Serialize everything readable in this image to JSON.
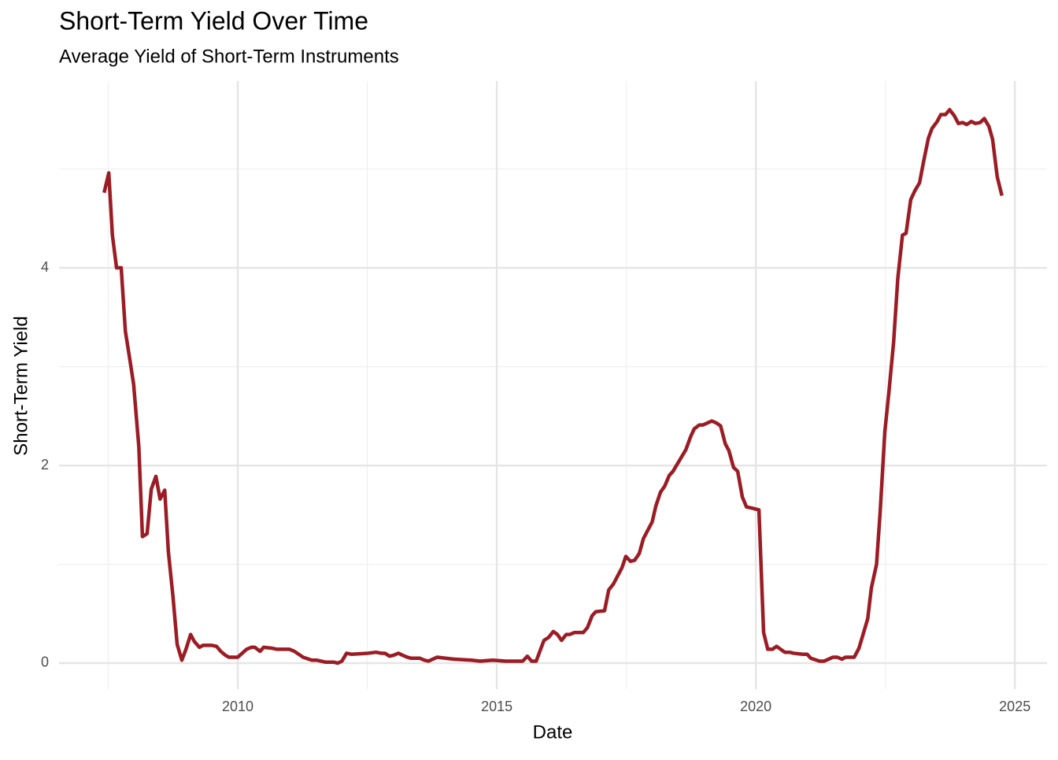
{
  "chart_data": {
    "type": "line",
    "title": "Short-Term Yield Over Time",
    "subtitle": "Average Yield of Short-Term Instruments",
    "x_label": "Date",
    "y_label": "Short-Term Yield",
    "x": [
      2007.42,
      2007.51,
      2007.58,
      2007.66,
      2007.75,
      2007.83,
      2007.92,
      2007.99,
      2008.09,
      2008.16,
      2008.25,
      2008.33,
      2008.42,
      2008.5,
      2008.59,
      2008.66,
      2008.75,
      2008.83,
      2008.92,
      2009.0,
      2009.09,
      2009.16,
      2009.26,
      2009.33,
      2009.42,
      2009.5,
      2009.59,
      2009.67,
      2009.76,
      2009.83,
      2010.0,
      2010.17,
      2010.26,
      2010.33,
      2010.43,
      2010.5,
      2010.67,
      2010.76,
      2011.0,
      2011.09,
      2011.26,
      2011.43,
      2011.52,
      2011.69,
      2011.85,
      2011.93,
      2012.01,
      2012.1,
      2012.19,
      2012.51,
      2012.67,
      2012.77,
      2012.84,
      2012.93,
      2013.01,
      2013.1,
      2013.18,
      2013.27,
      2013.34,
      2013.51,
      2013.6,
      2013.68,
      2013.85,
      2014.01,
      2014.18,
      2014.51,
      2014.68,
      2014.92,
      2015.17,
      2015.5,
      2015.59,
      2015.67,
      2015.76,
      2015.91,
      2016.0,
      2016.09,
      2016.17,
      2016.25,
      2016.34,
      2016.41,
      2016.5,
      2016.67,
      2016.75,
      2016.84,
      2016.91,
      2017.08,
      2017.16,
      2017.25,
      2017.42,
      2017.49,
      2017.58,
      2017.66,
      2017.75,
      2017.83,
      2018.0,
      2018.07,
      2018.16,
      2018.24,
      2018.33,
      2018.4,
      2018.57,
      2018.65,
      2018.74,
      2018.81,
      2018.91,
      2018.98,
      2019.15,
      2019.24,
      2019.32,
      2019.41,
      2019.48,
      2019.57,
      2019.65,
      2019.74,
      2019.82,
      2019.91,
      2020.06,
      2020.15,
      2020.23,
      2020.32,
      2020.4,
      2020.56,
      2020.65,
      2020.73,
      2020.9,
      2020.99,
      2021.06,
      2021.23,
      2021.32,
      2021.49,
      2021.57,
      2021.66,
      2021.73,
      2021.9,
      2021.99,
      2022.07,
      2022.16,
      2022.23,
      2022.33,
      2022.4,
      2022.49,
      2022.57,
      2022.66,
      2022.74,
      2022.83,
      2022.9,
      2022.99,
      2023.07,
      2023.16,
      2023.24,
      2023.33,
      2023.4,
      2023.5,
      2023.57,
      2023.66,
      2023.74,
      2023.83,
      2023.91,
      2023.99,
      2024.07,
      2024.16,
      2024.24,
      2024.33,
      2024.41,
      2024.5,
      2024.57,
      2024.66,
      2024.75
    ],
    "series": [
      {
        "color": "#9b1c24",
        "values": [
          4.76,
          4.96,
          4.33,
          4.0,
          4.0,
          3.36,
          3.06,
          2.82,
          2.19,
          1.28,
          1.31,
          1.76,
          1.89,
          1.66,
          1.75,
          1.13,
          0.67,
          0.19,
          0.03,
          0.14,
          0.29,
          0.22,
          0.16,
          0.18,
          0.18,
          0.18,
          0.17,
          0.12,
          0.08,
          0.06,
          0.06,
          0.14,
          0.16,
          0.16,
          0.12,
          0.16,
          0.15,
          0.14,
          0.14,
          0.12,
          0.06,
          0.03,
          0.03,
          0.01,
          0.01,
          0.0,
          0.02,
          0.1,
          0.09,
          0.1,
          0.11,
          0.1,
          0.1,
          0.07,
          0.08,
          0.1,
          0.08,
          0.06,
          0.05,
          0.05,
          0.03,
          0.02,
          0.06,
          0.05,
          0.04,
          0.03,
          0.02,
          0.03,
          0.02,
          0.02,
          0.07,
          0.02,
          0.02,
          0.23,
          0.26,
          0.32,
          0.29,
          0.23,
          0.29,
          0.29,
          0.31,
          0.31,
          0.36,
          0.48,
          0.52,
          0.53,
          0.74,
          0.8,
          0.97,
          1.08,
          1.03,
          1.04,
          1.11,
          1.26,
          1.43,
          1.59,
          1.73,
          1.79,
          1.9,
          1.94,
          2.09,
          2.16,
          2.29,
          2.37,
          2.41,
          2.41,
          2.45,
          2.43,
          2.4,
          2.22,
          2.15,
          1.98,
          1.94,
          1.68,
          1.58,
          1.57,
          1.55,
          0.31,
          0.14,
          0.14,
          0.17,
          0.11,
          0.11,
          0.1,
          0.09,
          0.09,
          0.05,
          0.02,
          0.02,
          0.06,
          0.06,
          0.04,
          0.06,
          0.06,
          0.15,
          0.29,
          0.45,
          0.76,
          1.0,
          1.53,
          2.34,
          2.75,
          3.25,
          3.89,
          4.33,
          4.35,
          4.69,
          4.78,
          4.86,
          5.08,
          5.31,
          5.41,
          5.48,
          5.55,
          5.55,
          5.6,
          5.54,
          5.46,
          5.47,
          5.45,
          5.48,
          5.46,
          5.47,
          5.51,
          5.43,
          5.3,
          4.92,
          4.73
        ]
      }
    ],
    "xlim": [
      2006.55,
      2025.62
    ],
    "ylim": [
      -0.263,
      5.889
    ],
    "xticks": [
      2010,
      2015,
      2020,
      2025
    ],
    "yticks": [
      0,
      2,
      4
    ],
    "xminor": [
      2007.5,
      2012.5,
      2017.5,
      2022.5
    ],
    "yminor": [
      1,
      3,
      5
    ],
    "grid": true
  }
}
